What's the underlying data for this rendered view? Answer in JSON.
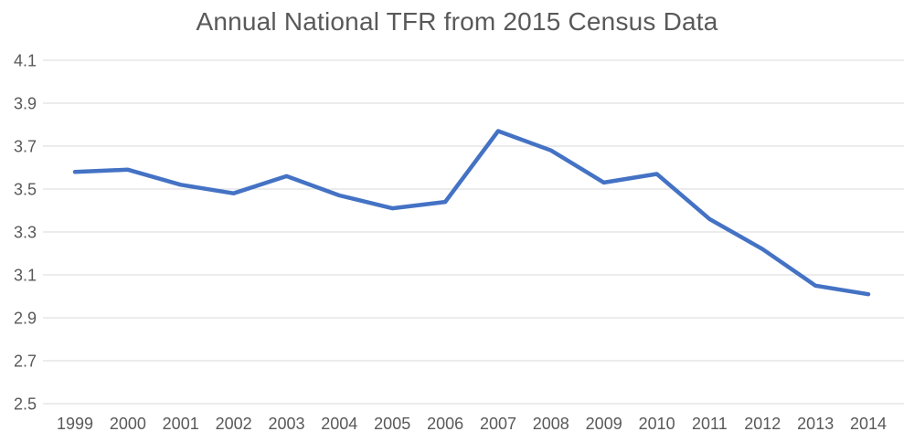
{
  "chart_data": {
    "type": "line",
    "title": "Annual National TFR from 2015 Census Data",
    "x": [
      "1999",
      "2000",
      "2001",
      "2002",
      "2003",
      "2004",
      "2005",
      "2006",
      "2007",
      "2008",
      "2009",
      "2010",
      "2011",
      "2012",
      "2013",
      "2014"
    ],
    "series": [
      {
        "name": "Annual National TFR",
        "values": [
          3.58,
          3.59,
          3.52,
          3.48,
          3.56,
          3.47,
          3.41,
          3.44,
          3.77,
          3.68,
          3.53,
          3.57,
          3.36,
          3.22,
          3.05,
          3.01
        ]
      }
    ],
    "xlabel": "",
    "ylabel": "",
    "ylim": [
      2.5,
      4.1
    ],
    "yticks": [
      4.1,
      3.9,
      3.7,
      3.5,
      3.3,
      3.1,
      2.9,
      2.7,
      2.5
    ],
    "ytick_labels": [
      "4.1",
      "3.9",
      "3.7",
      "3.5",
      "3.3",
      "3.1",
      "2.9",
      "2.7",
      "2.5"
    ],
    "grid": "horizontal",
    "legend_position": "none",
    "markers": "none",
    "colors": {
      "line": "#4472C4",
      "gridline": "#D9D9D9",
      "axis_text": "#595959",
      "title_text": "#595959",
      "background": "#FFFFFF"
    }
  }
}
